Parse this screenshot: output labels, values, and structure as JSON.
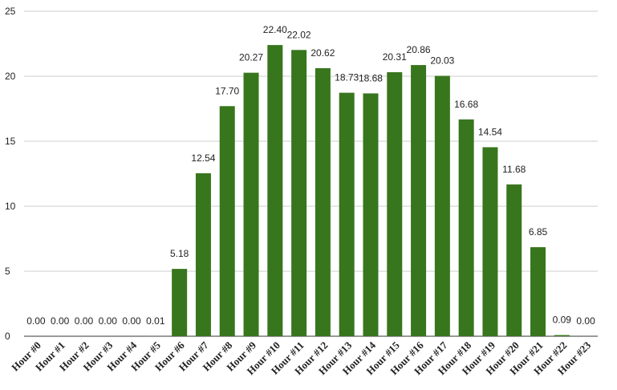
{
  "chart_data": {
    "type": "bar",
    "categories": [
      "Hour #0",
      "Hour #1",
      "Hour #2",
      "Hour #3",
      "Hour #4",
      "Hour #5",
      "Hour #6",
      "Hour #7",
      "Hour #8",
      "Hour #9",
      "Hour #10",
      "Hour #11",
      "Hour #12",
      "Hour #13",
      "Hour #14",
      "Hour #15",
      "Hour #16",
      "Hour #17",
      "Hour #18",
      "Hour #19",
      "Hour #20",
      "Hour #21",
      "Hour #22",
      "Hour #23"
    ],
    "values": [
      0.0,
      0.0,
      0.0,
      0.0,
      0.0,
      0.01,
      5.18,
      12.54,
      17.7,
      20.27,
      22.4,
      22.02,
      20.62,
      18.73,
      18.68,
      20.31,
      20.86,
      20.03,
      16.68,
      14.54,
      11.68,
      6.85,
      0.09,
      0.0
    ],
    "data_labels": [
      "0.00",
      "0.00",
      "0.00",
      "0.00",
      "0.00",
      "0.01",
      "5.18",
      "12.54",
      "17.70",
      "20.27",
      "22.40",
      "22.02",
      "20.62",
      "18.73",
      "18.68",
      "20.31",
      "20.86",
      "20.03",
      "16.68",
      "14.54",
      "11.68",
      "6.85",
      "0.09",
      "0.00"
    ],
    "title": "",
    "xlabel": "",
    "ylabel": "",
    "ylim": [
      0,
      25
    ],
    "yticks": [
      "0",
      "5",
      "10",
      "15",
      "20",
      "25"
    ],
    "grid": true,
    "legend": "none",
    "bar_color": "#38761d"
  }
}
